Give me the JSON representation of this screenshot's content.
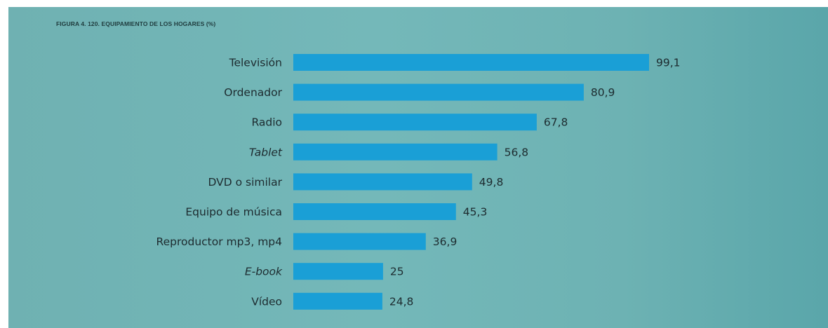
{
  "chart_data": {
    "type": "bar",
    "orientation": "horizontal",
    "title": "FIGURA 4. 120. EQUIPAMIENTO DE LOS HOGARES (%)",
    "categories": [
      "Televisión",
      "Ordenador",
      "Radio",
      "Tablet",
      "DVD o similar",
      "Equipo de música",
      "Reproductor mp3, mp4",
      "E-book",
      "Vídeo"
    ],
    "italic_categories": [
      "Tablet",
      "E-book"
    ],
    "values": [
      99.1,
      80.9,
      67.8,
      56.8,
      49.8,
      45.3,
      36.9,
      25,
      24.8
    ],
    "value_labels": [
      "99,1",
      "80,9",
      "67,8",
      "56,8",
      "49,8",
      "45,3",
      "36,9",
      "25",
      "24,8"
    ],
    "xlim": [
      0,
      100
    ],
    "grid": false,
    "legend": "none",
    "colors": {
      "bar": "#1a9fd6",
      "background": "#6fb1b2",
      "text": "#1d2b2f"
    }
  }
}
